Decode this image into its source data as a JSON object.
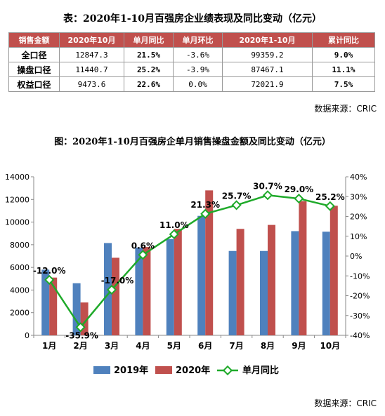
{
  "table": {
    "title": "表：2020年1-10月百强房企业绩表现及同比变动（亿元）",
    "headers": [
      "销售金额",
      "2020年10月",
      "单月同比",
      "单月环比",
      "2020年1-10月",
      "累计同比"
    ],
    "rows": [
      [
        "全口径",
        "12847.3",
        "21.5%",
        "-3.6%",
        "99359.2",
        "9.0%"
      ],
      [
        "操盘口径",
        "11440.7",
        "25.2%",
        "-3.9%",
        "87467.1",
        "11.1%"
      ],
      [
        "权益口径",
        "9473.6",
        "22.6%",
        "0.0%",
        "72021.9",
        "7.5%"
      ]
    ],
    "source": "数据来源：CRIC"
  },
  "chart_title": "图：2020年1-10月百强房企单月销售操盘金额及同比变动（亿元）",
  "source": "数据来源：CRIC",
  "chart_data": {
    "type": "bar",
    "categories": [
      "1月",
      "2月",
      "3月",
      "4月",
      "5月",
      "6月",
      "7月",
      "8月",
      "9月",
      "10月"
    ],
    "series": [
      {
        "name": "2019年",
        "type": "bar",
        "axis": "left",
        "color": "#4f81bd",
        "values": [
          5800,
          4600,
          8150,
          7750,
          8500,
          10550,
          7450,
          7450,
          9200,
          9150
        ]
      },
      {
        "name": "2020年",
        "type": "bar",
        "axis": "left",
        "color": "#c0504d",
        "values": [
          5100,
          2900,
          6850,
          7800,
          9400,
          12800,
          9400,
          9750,
          11850,
          11440.7
        ]
      },
      {
        "name": "单月同比",
        "type": "line",
        "axis": "right",
        "color": "#1faa2a",
        "values": [
          -12.0,
          -35.9,
          -17.0,
          0.6,
          11.0,
          21.3,
          25.7,
          30.7,
          29.0,
          25.2
        ],
        "labels": [
          "-12.0%",
          "-35.9%",
          "-17.0%",
          "0.6%",
          "11.0%",
          "21.3%",
          "25.7%",
          "30.7%",
          "29.0%",
          "25.2%"
        ]
      }
    ],
    "y_left": {
      "range": [
        0,
        14000
      ],
      "ticks": [
        "0",
        "2000",
        "4000",
        "6000",
        "8000",
        "10000",
        "12000",
        "14000"
      ]
    },
    "y_right": {
      "range": [
        -40,
        40
      ],
      "ticks": [
        "-40%",
        "-30%",
        "-20%",
        "-10%",
        "0%",
        "10%",
        "20%",
        "30%",
        "40%"
      ]
    },
    "grid": false,
    "legend_position": "bottom"
  }
}
